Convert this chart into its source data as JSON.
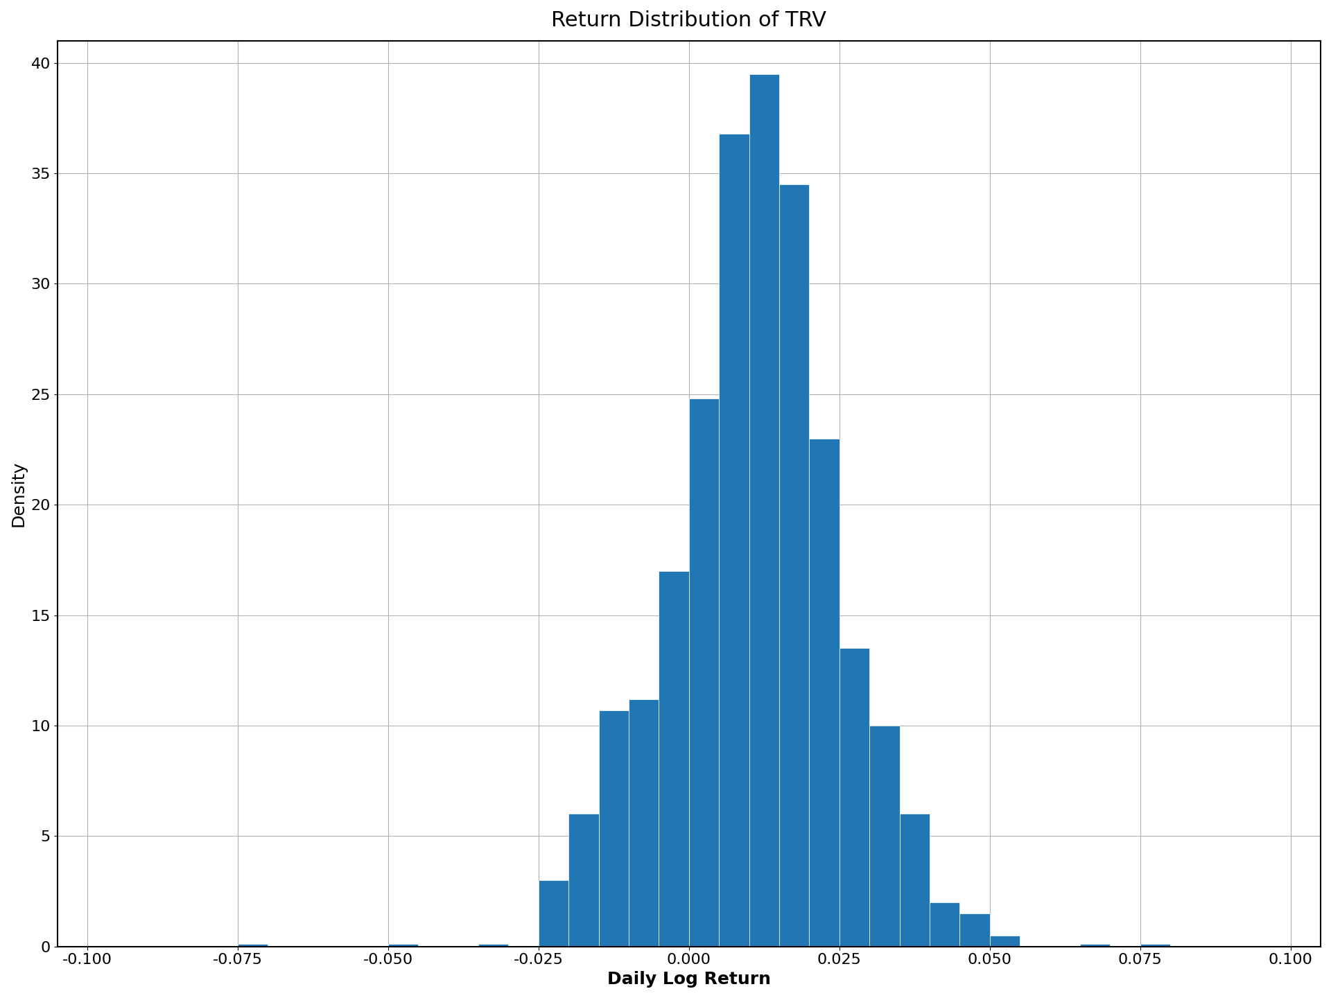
{
  "title": "Return Distribution of TRV",
  "xlabel": "Daily Log Return",
  "ylabel": "Density",
  "xlim": [
    -0.105,
    0.105
  ],
  "ylim": [
    0,
    41
  ],
  "yticks": [
    0,
    5,
    10,
    15,
    20,
    25,
    30,
    35,
    40
  ],
  "xticks": [
    -0.1,
    -0.075,
    -0.05,
    -0.025,
    0.0,
    0.025,
    0.05,
    0.075,
    0.1
  ],
  "bar_color": "#2077b4",
  "bar_edgecolor": "white",
  "bar_linewidth": 0.5,
  "figsize": [
    19.2,
    14.4
  ],
  "dpi": 100,
  "title_fontsize": 22,
  "label_fontsize": 18,
  "tick_fontsize": 16,
  "grid_color": "#b0b0b0",
  "grid_linewidth": 0.8,
  "bin_width": 0.005,
  "bin_starts": [
    -0.1,
    -0.095,
    -0.09,
    -0.085,
    -0.08,
    -0.075,
    -0.07,
    -0.065,
    -0.06,
    -0.055,
    -0.05,
    -0.045,
    -0.04,
    -0.035,
    -0.03,
    -0.025,
    -0.02,
    -0.015,
    -0.01,
    -0.005,
    0.0,
    0.005,
    0.01,
    0.015,
    0.02,
    0.025,
    0.03,
    0.035,
    0.04,
    0.045,
    0.05,
    0.055,
    0.06,
    0.065,
    0.07,
    0.075,
    0.08,
    0.085,
    0.09,
    0.095
  ],
  "bin_densities": [
    0.0,
    0.0,
    0.0,
    0.0,
    0.0,
    0.13,
    0.0,
    0.0,
    0.0,
    0.0,
    0.13,
    0.0,
    0.0,
    0.13,
    0.0,
    3.0,
    6.0,
    10.7,
    11.2,
    17.0,
    24.8,
    36.8,
    39.5,
    34.5,
    23.0,
    13.5,
    10.0,
    6.0,
    2.0,
    1.5,
    0.5,
    0.0,
    0.0,
    0.13,
    0.0,
    0.13,
    0.0,
    0.0,
    0.0,
    0.0
  ]
}
